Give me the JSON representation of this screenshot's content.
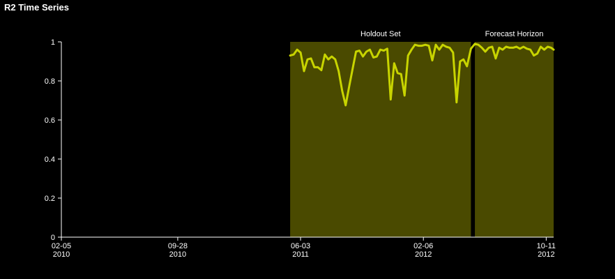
{
  "chart_data": {
    "type": "line",
    "title": "R2 Time Series",
    "xlabel": "",
    "ylabel": "",
    "xlim": [
      "2010-02-05",
      "2012-10-26"
    ],
    "ylim": [
      0,
      1
    ],
    "y_ticks": [
      {
        "value": 0,
        "label": "0"
      },
      {
        "value": 0.2,
        "label": "0.2"
      },
      {
        "value": 0.4,
        "label": "0.4"
      },
      {
        "value": 0.6,
        "label": "0.6"
      },
      {
        "value": 0.8,
        "label": "0.8"
      },
      {
        "value": 1,
        "label": "1"
      }
    ],
    "x_ticks": [
      {
        "date": "2010-02-05",
        "line1": "02-05",
        "line2": "2010"
      },
      {
        "date": "2010-09-28",
        "line1": "09-28",
        "line2": "2010"
      },
      {
        "date": "2011-06-03",
        "line1": "06-03",
        "line2": "2011"
      },
      {
        "date": "2012-02-06",
        "line1": "02-06",
        "line2": "2012"
      },
      {
        "date": "2012-10-11",
        "line1": "10-11",
        "line2": "2012"
      }
    ],
    "bands": [
      {
        "label": "Holdout Set",
        "start": "2011-05-13",
        "end": "2012-05-12"
      },
      {
        "label": "Forecast Horizon",
        "start": "2012-05-20",
        "end": "2012-10-26"
      }
    ],
    "grid": false,
    "colors": {
      "line": "#c8d400",
      "band": "#4a4a00",
      "axis": "#ffffff"
    },
    "series": [
      {
        "x": [
          "2011-05-13",
          "2011-05-20",
          "2011-05-27",
          "2011-06-03",
          "2011-06-10",
          "2011-06-17",
          "2011-06-24",
          "2011-07-01",
          "2011-07-08",
          "2011-07-15",
          "2011-07-22",
          "2011-07-29",
          "2011-08-05",
          "2011-08-12",
          "2011-08-19",
          "2011-08-26",
          "2011-09-02",
          "2011-09-09",
          "2011-09-16",
          "2011-09-23",
          "2011-09-30",
          "2011-10-07",
          "2011-10-14",
          "2011-10-21",
          "2011-10-28",
          "2011-11-04",
          "2011-11-11",
          "2011-11-18",
          "2011-11-25",
          "2011-12-02",
          "2011-12-09",
          "2011-12-16",
          "2011-12-23",
          "2011-12-30",
          "2012-01-06",
          "2012-01-13",
          "2012-01-20",
          "2012-01-27",
          "2012-02-03",
          "2012-02-10",
          "2012-02-17",
          "2012-02-24",
          "2012-03-02",
          "2012-03-09",
          "2012-03-16",
          "2012-03-23",
          "2012-03-30",
          "2012-04-06",
          "2012-04-13",
          "2012-04-20",
          "2012-04-27",
          "2012-05-04",
          "2012-05-12",
          "2012-05-20",
          "2012-05-27",
          "2012-06-03",
          "2012-06-10",
          "2012-06-17",
          "2012-06-24",
          "2012-07-01",
          "2012-07-08",
          "2012-07-15",
          "2012-07-22",
          "2012-07-29",
          "2012-08-05",
          "2012-08-12",
          "2012-08-19",
          "2012-08-26",
          "2012-09-02",
          "2012-09-09",
          "2012-09-16",
          "2012-09-23",
          "2012-09-30",
          "2012-10-07",
          "2012-10-14",
          "2012-10-21",
          "2012-10-26"
        ],
        "y": [
          0.93,
          0.935,
          0.96,
          0.945,
          0.85,
          0.91,
          0.915,
          0.87,
          0.87,
          0.855,
          0.935,
          0.91,
          0.925,
          0.91,
          0.85,
          0.75,
          0.675,
          0.77,
          0.86,
          0.95,
          0.955,
          0.925,
          0.95,
          0.96,
          0.92,
          0.925,
          0.96,
          0.955,
          0.965,
          0.705,
          0.89,
          0.84,
          0.835,
          0.725,
          0.93,
          0.96,
          0.985,
          0.98,
          0.98,
          0.985,
          0.98,
          0.905,
          0.985,
          0.96,
          0.985,
          0.975,
          0.97,
          0.945,
          0.69,
          0.9,
          0.91,
          0.875,
          0.965,
          0.99,
          0.985,
          0.97,
          0.95,
          0.97,
          0.975,
          0.915,
          0.97,
          0.96,
          0.975,
          0.97,
          0.97,
          0.975,
          0.965,
          0.975,
          0.965,
          0.96,
          0.93,
          0.94,
          0.975,
          0.96,
          0.975,
          0.97,
          0.96
        ]
      }
    ]
  }
}
